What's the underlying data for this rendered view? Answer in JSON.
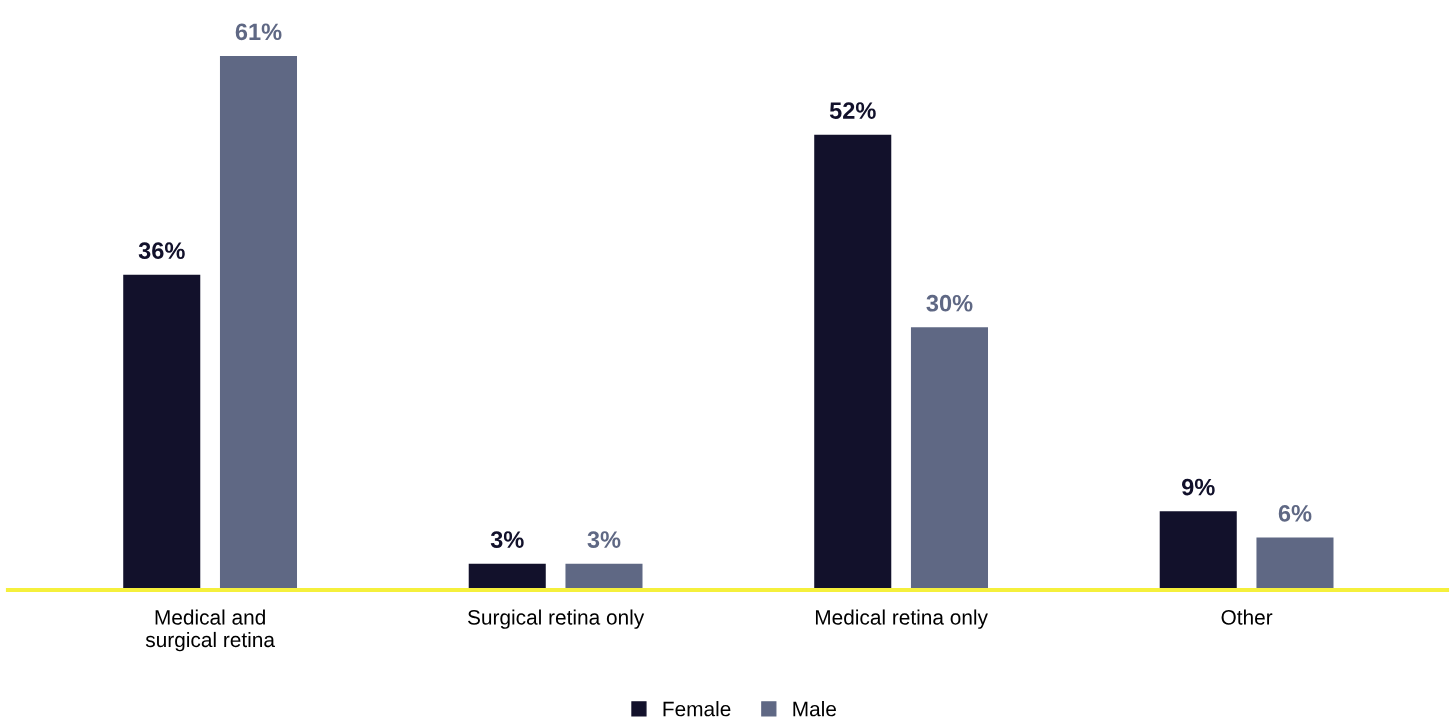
{
  "chart_data": {
    "type": "bar",
    "categories": [
      "Medical and\nsurgical retina",
      "Surgical retina only",
      "Medical retina only",
      "Other"
    ],
    "series": [
      {
        "name": "Female",
        "color": "#12112b",
        "values": [
          36,
          3,
          52,
          9
        ],
        "value_labels": [
          "36%",
          "3%",
          "52%",
          "9%"
        ]
      },
      {
        "name": "Male",
        "color": "#5f6884",
        "values": [
          61,
          3,
          30,
          6
        ],
        "value_labels": [
          "61%",
          "3%",
          "30%",
          "6%"
        ]
      }
    ],
    "grid": false,
    "legend": "bottom",
    "tick_labels": "x"
  }
}
